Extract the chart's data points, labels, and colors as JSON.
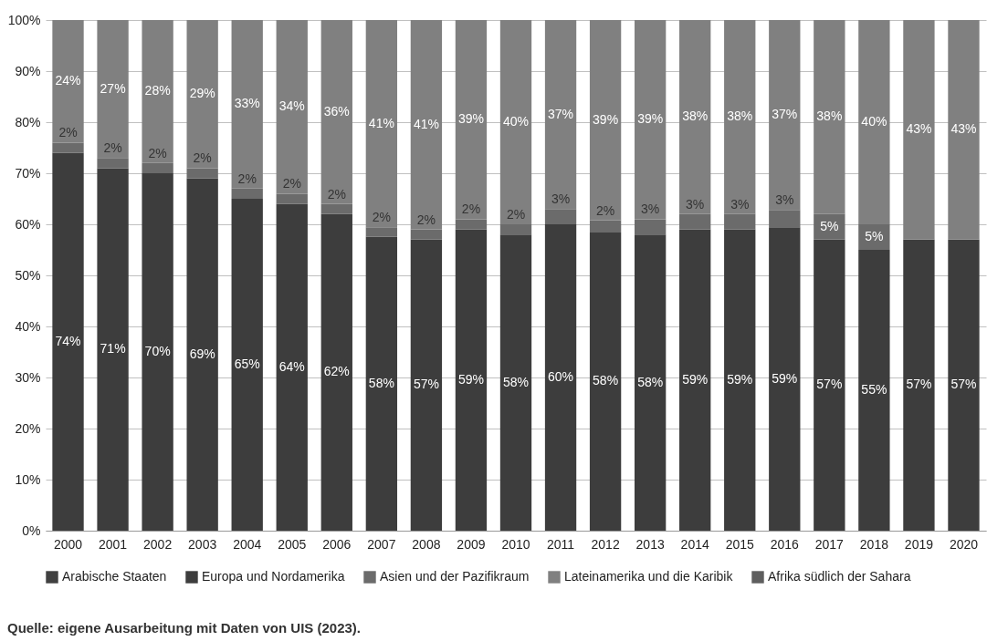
{
  "chart_data": {
    "type": "bar",
    "stacked": true,
    "categories": [
      "2000",
      "2001",
      "2002",
      "2003",
      "2004",
      "2005",
      "2006",
      "2007",
      "2008",
      "2009",
      "2010",
      "2011",
      "2012",
      "2013",
      "2014",
      "2015",
      "2016",
      "2017",
      "2018",
      "2019",
      "2020"
    ],
    "series": [
      {
        "name": "Arabische Staaten",
        "color": "#404040",
        "values": [
          null,
          null,
          null,
          null,
          null,
          null,
          null,
          null,
          null,
          null,
          null,
          null,
          null,
          null,
          null,
          null,
          null,
          null,
          null,
          null,
          null
        ]
      },
      {
        "name": "Europa und Nordamerika",
        "color": "#3d3d3d",
        "values": [
          74,
          71,
          70,
          69,
          65,
          64,
          62,
          57.6,
          57,
          59,
          58,
          60,
          58.4,
          58,
          59,
          59,
          59.4,
          57,
          55,
          57,
          57
        ],
        "value_labels": [
          "74%",
          "71%",
          "70%",
          "69%",
          "65%",
          "64%",
          "62%",
          "58%",
          "57%",
          "59%",
          "58%",
          "60%",
          "58%",
          "58%",
          "59%",
          "59%",
          "59%",
          "57%",
          "55%",
          "57%",
          "57%"
        ]
      },
      {
        "name": "Asien und der Pazifikraum",
        "color": "#6b6b6b",
        "values": [
          2,
          2,
          2,
          2,
          2,
          2,
          2,
          1.8,
          2,
          2,
          2,
          3,
          2.4,
          3,
          3,
          3,
          3.4,
          5,
          5,
          null,
          null
        ],
        "value_labels": [
          "2%",
          "2%",
          "2%",
          "2%",
          "2%",
          "2%",
          "2%",
          "2%",
          "2%",
          "2%",
          "2%",
          "3%",
          "2%",
          "3%",
          "3%",
          "3%",
          "3%",
          "5%",
          "5%",
          null,
          null
        ]
      },
      {
        "name": "Lateinamerika und die Karibik",
        "color": "#808080",
        "values": [
          24,
          27,
          28,
          29,
          33,
          34,
          36,
          40.6,
          41,
          39,
          40,
          37,
          39.2,
          39,
          38,
          38,
          37.2,
          38,
          40,
          43,
          43
        ],
        "value_labels": [
          "24%",
          "27%",
          "28%",
          "29%",
          "33%",
          "34%",
          "36%",
          "41%",
          "41%",
          "39%",
          "40%",
          "37%",
          "39%",
          "39%",
          "38%",
          "38%",
          "37%",
          "38%",
          "40%",
          "43%",
          "43%"
        ]
      },
      {
        "name": "Afrika südlich der Sahara",
        "color": "#5e5e5e",
        "values": [
          null,
          null,
          null,
          null,
          null,
          null,
          null,
          null,
          null,
          null,
          null,
          null,
          null,
          null,
          null,
          null,
          null,
          null,
          null,
          null,
          null
        ]
      }
    ],
    "ylim": [
      0,
      100
    ],
    "yticks": [
      {
        "value": 0,
        "label": "0%"
      },
      {
        "value": 10,
        "label": "10%"
      },
      {
        "value": 20,
        "label": "20%"
      },
      {
        "value": 30,
        "label": "30%"
      },
      {
        "value": 40,
        "label": "40%"
      },
      {
        "value": 50,
        "label": "50%"
      },
      {
        "value": 60,
        "label": "60%"
      },
      {
        "value": 70,
        "label": "70%"
      },
      {
        "value": 80,
        "label": "80%"
      },
      {
        "value": 90,
        "label": "90%"
      },
      {
        "value": 100,
        "label": "100%"
      }
    ],
    "grid": "y",
    "legend": "bottom",
    "annotations": [
      "Quelle: eigene Ausarbeitung mit Daten von UIS (2023)."
    ]
  }
}
